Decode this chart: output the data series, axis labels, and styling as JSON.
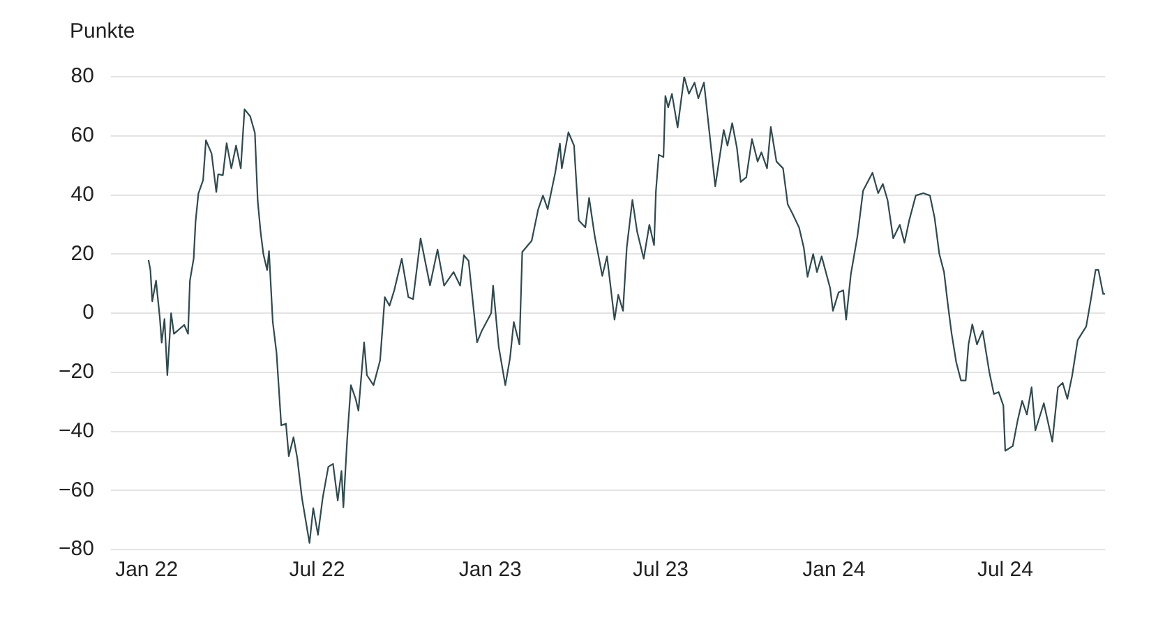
{
  "chart_data": {
    "type": "line",
    "ylabel": "Punkte",
    "grid": "y",
    "marker": "none",
    "line_style": "solid",
    "xlim": [
      "2021-11-24",
      "2024-10-15"
    ],
    "xticks": [
      {
        "value": "2022-01-01",
        "label": "Jan 22"
      },
      {
        "value": "2022-07-01",
        "label": "Jul 22"
      },
      {
        "value": "2023-01-01",
        "label": "Jan 23"
      },
      {
        "value": "2023-07-01",
        "label": "Jul 23"
      },
      {
        "value": "2024-01-01",
        "label": "Jan 24"
      },
      {
        "value": "2024-07-01",
        "label": "Jul 24"
      }
    ],
    "ylim": [
      -80,
      80
    ],
    "yticks": [
      {
        "value": -80,
        "label": "−80"
      },
      {
        "value": -60,
        "label": "−60"
      },
      {
        "value": -40,
        "label": "−40"
      },
      {
        "value": -20,
        "label": "−20"
      },
      0,
      20,
      40,
      60,
      80
    ],
    "series": [
      {
        "color": "#2f4a4f",
        "x": [
          "2022-01-03",
          "2022-01-05",
          "2022-01-07",
          "2022-01-11",
          "2022-01-15",
          "2022-01-17",
          "2022-01-20",
          "2022-01-23",
          "2022-01-27",
          "2022-01-30",
          "2022-02-10",
          "2022-02-14",
          "2022-02-16",
          "2022-02-20",
          "2022-02-22",
          "2022-02-25",
          "2022-03-02",
          "2022-03-05",
          "2022-03-11",
          "2022-03-16",
          "2022-03-18",
          "2022-03-23",
          "2022-03-27",
          "2022-04-01",
          "2022-04-06",
          "2022-04-11",
          "2022-04-15",
          "2022-04-21",
          "2022-04-26",
          "2022-04-29",
          "2022-05-02",
          "2022-05-05",
          "2022-05-09",
          "2022-05-11",
          "2022-05-15",
          "2022-05-19",
          "2022-05-24",
          "2022-05-29",
          "2022-06-01",
          "2022-06-06",
          "2022-06-10",
          "2022-06-15",
          "2022-06-23",
          "2022-06-27",
          "2022-07-02",
          "2022-07-07",
          "2022-07-13",
          "2022-07-18",
          "2022-07-23",
          "2022-07-27",
          "2022-07-29",
          "2022-08-02",
          "2022-08-06",
          "2022-08-11",
          "2022-08-14",
          "2022-08-20",
          "2022-08-23",
          "2022-08-30",
          "2022-09-06",
          "2022-09-11",
          "2022-09-16",
          "2022-09-21",
          "2022-09-29",
          "2022-10-06",
          "2022-10-11",
          "2022-10-19",
          "2022-10-29",
          "2022-11-06",
          "2022-11-13",
          "2022-11-23",
          "2022-11-30",
          "2022-12-04",
          "2022-12-09",
          "2022-12-18",
          "2022-12-23",
          "2023-01-02",
          "2023-01-04",
          "2023-01-10",
          "2023-01-17",
          "2023-01-22",
          "2023-01-26",
          "2023-02-01",
          "2023-02-04",
          "2023-02-14",
          "2023-02-21",
          "2023-02-26",
          "2023-03-03",
          "2023-03-11",
          "2023-03-16",
          "2023-03-18",
          "2023-03-25",
          "2023-03-31",
          "2023-04-05",
          "2023-04-12",
          "2023-04-16",
          "2023-04-22",
          "2023-04-30",
          "2023-05-05",
          "2023-05-13",
          "2023-05-17",
          "2023-05-22",
          "2023-05-26",
          "2023-06-01",
          "2023-06-06",
          "2023-06-13",
          "2023-06-19",
          "2023-06-24",
          "2023-06-26",
          "2023-06-29",
          "2023-07-04",
          "2023-07-06",
          "2023-07-09",
          "2023-07-13",
          "2023-07-19",
          "2023-07-26",
          "2023-07-31",
          "2023-08-06",
          "2023-08-10",
          "2023-08-16",
          "2023-08-22",
          "2023-08-28",
          "2023-09-06",
          "2023-09-10",
          "2023-09-15",
          "2023-09-20",
          "2023-09-24",
          "2023-09-30",
          "2023-10-06",
          "2023-10-12",
          "2023-10-16",
          "2023-10-22",
          "2023-10-26",
          "2023-11-01",
          "2023-11-08",
          "2023-11-13",
          "2023-11-18",
          "2023-11-25",
          "2023-11-30",
          "2023-12-04",
          "2023-12-10",
          "2023-12-14",
          "2023-12-19",
          "2023-12-28",
          "2023-12-31",
          "2024-01-06",
          "2024-01-11",
          "2024-01-14",
          "2024-01-19",
          "2024-01-26",
          "2024-02-01",
          "2024-02-11",
          "2024-02-17",
          "2024-02-22",
          "2024-02-27",
          "2024-03-04",
          "2024-03-11",
          "2024-03-16",
          "2024-03-21",
          "2024-03-28",
          "2024-04-05",
          "2024-04-12",
          "2024-04-17",
          "2024-04-22",
          "2024-04-27",
          "2024-05-01",
          "2024-05-05",
          "2024-05-10",
          "2024-05-15",
          "2024-05-20",
          "2024-05-23",
          "2024-05-27",
          "2024-06-01",
          "2024-06-07",
          "2024-06-14",
          "2024-06-19",
          "2024-06-24",
          "2024-06-29",
          "2024-07-01",
          "2024-07-09",
          "2024-07-14",
          "2024-07-19",
          "2024-07-24",
          "2024-07-29",
          "2024-08-02",
          "2024-08-11",
          "2024-08-20",
          "2024-08-26",
          "2024-08-31",
          "2024-09-05",
          "2024-09-10",
          "2024-09-16",
          "2024-09-25",
          "2024-09-30",
          "2024-10-05",
          "2024-10-08",
          "2024-10-13",
          "2024-10-15"
        ],
        "values": [
          18,
          14.6,
          4,
          11,
          -1.5,
          -10,
          -2,
          -21,
          0,
          -7,
          -4,
          -7,
          11,
          18.5,
          31,
          40.5,
          45,
          58.5,
          54,
          41,
          47,
          46.7,
          57.5,
          49,
          56.7,
          49,
          69,
          66.6,
          61,
          38,
          27.7,
          20,
          14.6,
          21,
          -3,
          -13.5,
          -38,
          -37.4,
          -48.4,
          -42,
          -49,
          -62.6,
          -77.8,
          -66,
          -75,
          -62.6,
          -52,
          -51,
          -63.4,
          -53.4,
          -65.7,
          -42.7,
          -24.4,
          -29,
          -33,
          -9.9,
          -21,
          -24.4,
          -16,
          5.4,
          2.5,
          7.7,
          18.4,
          5.4,
          4.7,
          25.3,
          9.4,
          21.5,
          9.3,
          13.9,
          9.3,
          19.6,
          17.7,
          -9.9,
          -6,
          0,
          9.3,
          -11.4,
          -24.4,
          -15.2,
          -3,
          -10.6,
          20.7,
          24.5,
          35.2,
          39.8,
          35.2,
          47.5,
          57.4,
          49,
          61.2,
          56.7,
          31.4,
          29,
          39,
          26,
          12.6,
          19.2,
          -2.2,
          6.2,
          0.8,
          22.2,
          38.3,
          27.6,
          18.4,
          29.9,
          23,
          41.4,
          53.6,
          52.8,
          73.5,
          69.6,
          74.2,
          62.8,
          80,
          74.2,
          78,
          72.7,
          78,
          60.5,
          42.9,
          62,
          56.7,
          64.3,
          55.9,
          44.4,
          46,
          58.9,
          51.3,
          54.4,
          49,
          63,
          51.3,
          49,
          36.8,
          33.7,
          29,
          22.2,
          12.3,
          20,
          13.9,
          19.2,
          8.5,
          0.8,
          7,
          7.7,
          -2.2,
          13.1,
          26,
          41.4,
          47.5,
          40.6,
          43.7,
          38.3,
          25.3,
          29.9,
          23.8,
          31.4,
          39.8,
          40.6,
          39.8,
          32.2,
          20,
          13.9,
          3.1,
          -6.8,
          -16.7,
          -22.8,
          -22.8,
          -10.6,
          -3.8,
          -10.6,
          -6,
          -19.8,
          -27.4,
          -26.7,
          -31.3,
          -46.6,
          -45,
          -36.6,
          -29.7,
          -34.3,
          -25.1,
          -39.7,
          -30.5,
          -43.5,
          -25.1,
          -23.6,
          -29,
          -21.3,
          -9.1,
          -4.5,
          4.7,
          14.6,
          14.6,
          6.5,
          6.5
        ]
      }
    ]
  }
}
